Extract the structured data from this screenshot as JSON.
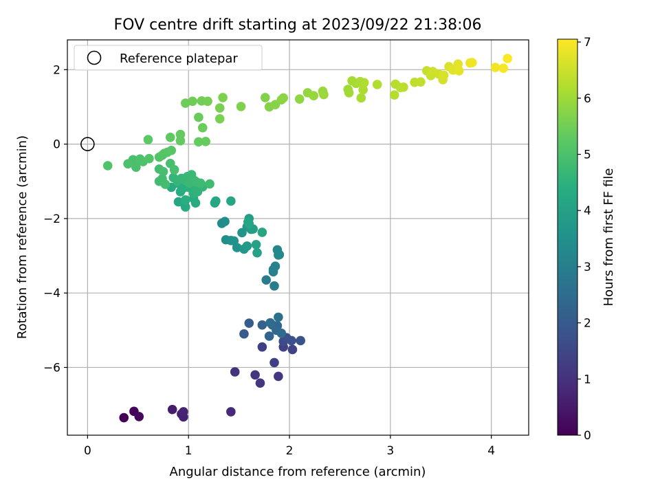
{
  "chart_data": {
    "type": "scatter",
    "title": "FOV centre drift starting at 2023/09/22 21:38:06",
    "xlabel": "Angular distance from reference (arcmin)",
    "ylabel": "Rotation from reference (arcmin)",
    "xlim": [
      -0.2,
      4.37
    ],
    "ylim": [
      -7.82,
      2.8
    ],
    "xticks": [
      0,
      1,
      2,
      3,
      4
    ],
    "xtick_labels": [
      "0",
      "1",
      "2",
      "3",
      "4"
    ],
    "yticks": [
      2,
      0,
      -2,
      -4,
      -6
    ],
    "ytick_labels": [
      "2",
      "0",
      "−2",
      "−4",
      "−6"
    ],
    "grid": true,
    "legend": {
      "placement": "top-left",
      "entries": [
        {
          "label": "Reference platepar",
          "marker": "open-circle",
          "x": 0,
          "y": 0
        }
      ]
    },
    "colorbar": {
      "label": "Hours from first FF file",
      "colormap": "viridis",
      "range": [
        0,
        7.05
      ],
      "ticks": [
        0,
        1,
        2,
        3,
        4,
        5,
        6,
        7
      ],
      "tick_labels": [
        "0",
        "1",
        "2",
        "3",
        "4",
        "5",
        "6",
        "7"
      ]
    },
    "series": [
      {
        "points": [
          [
            0.36,
            -7.35,
            0.05
          ],
          [
            0.46,
            -7.18,
            0.1
          ],
          [
            0.51,
            -7.32,
            0.15
          ],
          [
            0.84,
            -7.13,
            0.55
          ],
          [
            0.93,
            -7.25,
            0.6
          ],
          [
            0.95,
            -7.33,
            0.65
          ],
          [
            0.95,
            -7.19,
            0.7
          ],
          [
            1.42,
            -7.19,
            0.85
          ],
          [
            1.46,
            -6.12,
            1.0
          ],
          [
            1.66,
            -6.2,
            1.05
          ],
          [
            1.71,
            -6.42,
            1.1
          ],
          [
            1.89,
            -6.24,
            1.15
          ],
          [
            1.73,
            -5.45,
            1.3
          ],
          [
            1.85,
            -5.87,
            1.3
          ],
          [
            1.94,
            -5.45,
            1.35
          ],
          [
            2.03,
            -5.52,
            1.4
          ],
          [
            1.94,
            -5.3,
            1.6
          ],
          [
            1.97,
            -5.2,
            1.7
          ],
          [
            2.02,
            -5.28,
            1.75
          ],
          [
            2.11,
            -5.28,
            1.8
          ],
          [
            1.55,
            -5.1,
            2.0
          ],
          [
            1.6,
            -4.81,
            2.1
          ],
          [
            1.73,
            -4.86,
            2.2
          ],
          [
            1.8,
            -5.16,
            2.25
          ],
          [
            1.83,
            -4.86,
            2.3
          ],
          [
            1.88,
            -4.88,
            2.35
          ],
          [
            1.87,
            -5.0,
            2.4
          ],
          [
            1.92,
            -5.08,
            2.45
          ],
          [
            1.81,
            -4.8,
            2.5
          ],
          [
            1.89,
            -4.65,
            2.6
          ],
          [
            1.77,
            -3.65,
            2.9
          ],
          [
            1.85,
            -3.81,
            2.95
          ],
          [
            1.84,
            -3.43,
            3.0
          ],
          [
            1.84,
            -3.37,
            3.05
          ],
          [
            1.86,
            -3.28,
            3.1
          ],
          [
            1.88,
            -2.84,
            3.2
          ],
          [
            1.9,
            -2.97,
            3.25
          ],
          [
            1.89,
            -2.98,
            3.3
          ],
          [
            1.33,
            -2.13,
            3.35
          ],
          [
            1.36,
            -2.08,
            3.4
          ],
          [
            1.37,
            -2.57,
            3.45
          ],
          [
            1.42,
            -2.59,
            3.5
          ],
          [
            1.45,
            -2.6,
            3.55
          ],
          [
            1.48,
            -2.78,
            3.6
          ],
          [
            1.53,
            -2.38,
            3.65
          ],
          [
            1.55,
            -2.82,
            3.7
          ],
          [
            1.58,
            -2.22,
            3.75
          ],
          [
            1.58,
            -2.74,
            3.8
          ],
          [
            1.6,
            -2.0,
            3.85
          ],
          [
            1.62,
            -2.29,
            3.9
          ],
          [
            1.64,
            -2.28,
            3.95
          ],
          [
            1.67,
            -2.7,
            4.0
          ],
          [
            1.68,
            -2.92,
            4.05
          ],
          [
            1.73,
            -2.37,
            4.1
          ],
          [
            1.59,
            -2.09,
            4.12
          ],
          [
            1.6,
            -2.14,
            4.14
          ],
          [
            1.26,
            -1.58,
            4.15
          ],
          [
            1.27,
            -1.53,
            4.16
          ],
          [
            1.42,
            -1.53,
            4.17
          ],
          [
            0.9,
            -1.55,
            4.2
          ],
          [
            0.96,
            -1.61,
            4.22
          ],
          [
            0.97,
            -1.69,
            4.25
          ],
          [
            1.05,
            -1.46,
            4.28
          ],
          [
            1.07,
            -1.58,
            4.3
          ],
          [
            0.83,
            -1.16,
            4.32
          ],
          [
            0.9,
            -1.06,
            4.35
          ],
          [
            0.92,
            -1.28,
            4.38
          ],
          [
            0.94,
            -1.2,
            4.4
          ],
          [
            0.97,
            -1.5,
            4.42
          ],
          [
            1.0,
            -1.16,
            4.45
          ],
          [
            1.02,
            -1.0,
            4.48
          ],
          [
            1.05,
            -1.33,
            4.5
          ],
          [
            1.07,
            -1.18,
            4.52
          ],
          [
            1.09,
            -1.28,
            4.55
          ],
          [
            1.11,
            -1.09,
            4.57
          ],
          [
            1.14,
            -1.15,
            4.6
          ],
          [
            0.85,
            -0.9,
            4.62
          ],
          [
            0.89,
            -1.0,
            4.64
          ],
          [
            0.93,
            -0.92,
            4.66
          ],
          [
            0.96,
            -0.96,
            4.68
          ],
          [
            0.99,
            -0.87,
            4.7
          ],
          [
            1.01,
            -1.05,
            4.72
          ],
          [
            1.03,
            -0.82,
            4.74
          ],
          [
            1.06,
            -0.98,
            4.76
          ],
          [
            1.08,
            -1.02,
            4.78
          ],
          [
            1.12,
            -1.05,
            4.8
          ],
          [
            1.21,
            -1.07,
            4.82
          ],
          [
            0.71,
            -1.0,
            4.84
          ],
          [
            0.74,
            -0.93,
            4.85
          ],
          [
            0.77,
            -1.08,
            4.86
          ],
          [
            0.71,
            -0.67,
            4.88
          ],
          [
            0.75,
            -0.74,
            4.9
          ],
          [
            0.82,
            -0.52,
            4.92
          ],
          [
            0.86,
            -0.69,
            4.94
          ],
          [
            0.48,
            -0.62,
            4.96
          ],
          [
            0.45,
            -0.42,
            4.98
          ],
          [
            0.4,
            -0.53,
            5.0
          ],
          [
            0.52,
            -0.4,
            5.02
          ],
          [
            0.55,
            -0.47,
            5.04
          ],
          [
            0.2,
            -0.58,
            5.06
          ],
          [
            0.61,
            -0.39,
            5.08
          ],
          [
            0.71,
            -0.35,
            5.1
          ],
          [
            0.74,
            -0.3,
            5.12
          ],
          [
            0.76,
            -0.25,
            5.14
          ],
          [
            0.79,
            -0.22,
            5.16
          ],
          [
            0.83,
            -0.17,
            5.18
          ],
          [
            0.6,
            0.12,
            5.25
          ],
          [
            0.82,
            0.18,
            5.3
          ],
          [
            0.92,
            0.26,
            5.32
          ],
          [
            0.92,
            0.09,
            5.34
          ],
          [
            1.1,
            0.06,
            5.36
          ],
          [
            1.17,
            0.07,
            5.38
          ],
          [
            1.1,
            0.72,
            5.4
          ],
          [
            1.14,
            0.44,
            5.42
          ],
          [
            0.97,
            1.1,
            5.45
          ],
          [
            1.04,
            1.15,
            5.48
          ],
          [
            1.13,
            1.16,
            5.52
          ],
          [
            1.19,
            1.15,
            5.55
          ],
          [
            1.31,
            0.97,
            5.58
          ],
          [
            1.31,
            0.68,
            5.6
          ],
          [
            1.34,
            1.25,
            5.62
          ],
          [
            1.52,
            1.01,
            5.65
          ],
          [
            1.76,
            1.25,
            5.68
          ],
          [
            1.8,
            1.0,
            5.72
          ],
          [
            1.86,
            1.06,
            5.75
          ],
          [
            1.92,
            1.19,
            5.78
          ],
          [
            1.94,
            1.24,
            5.8
          ],
          [
            2.1,
            1.21,
            5.85
          ],
          [
            2.18,
            1.38,
            5.88
          ],
          [
            2.24,
            1.3,
            5.92
          ],
          [
            2.33,
            1.42,
            5.95
          ],
          [
            2.34,
            1.33,
            5.98
          ],
          [
            2.58,
            1.47,
            6.02
          ],
          [
            2.59,
            1.38,
            6.05
          ],
          [
            2.62,
            1.7,
            6.08
          ],
          [
            2.66,
            1.63,
            6.1
          ],
          [
            2.7,
            1.68,
            6.12
          ],
          [
            2.71,
            1.24,
            6.14
          ],
          [
            2.73,
            1.46,
            6.16
          ],
          [
            2.74,
            1.65,
            6.18
          ],
          [
            2.87,
            1.6,
            6.22
          ],
          [
            3.04,
            1.32,
            6.25
          ],
          [
            3.05,
            1.61,
            6.28
          ],
          [
            3.1,
            1.52,
            6.3
          ],
          [
            3.13,
            1.53,
            6.32
          ],
          [
            3.24,
            1.66,
            6.36
          ],
          [
            3.3,
            1.67,
            6.4
          ],
          [
            3.36,
            1.97,
            6.44
          ],
          [
            3.4,
            1.84,
            6.48
          ],
          [
            3.42,
            1.95,
            6.52
          ],
          [
            3.48,
            1.88,
            6.56
          ],
          [
            3.52,
            1.73,
            6.6
          ],
          [
            3.53,
            1.85,
            6.64
          ],
          [
            3.58,
            2.08,
            6.68
          ],
          [
            3.62,
            1.99,
            6.72
          ],
          [
            3.67,
            2.15,
            6.76
          ],
          [
            3.68,
            1.97,
            6.8
          ],
          [
            3.79,
            2.18,
            6.84
          ],
          [
            3.81,
            2.19,
            6.88
          ],
          [
            4.04,
            2.06,
            6.92
          ],
          [
            4.12,
            2.04,
            6.96
          ],
          [
            4.16,
            2.3,
            7.02
          ]
        ]
      }
    ]
  }
}
